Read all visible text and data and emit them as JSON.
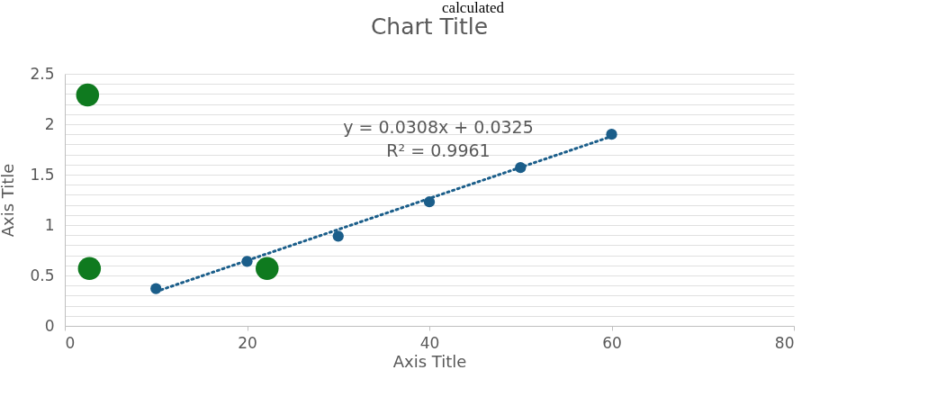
{
  "chart_data": {
    "type": "scatter",
    "title": "Chart Title",
    "xlabel": "Axis Title",
    "ylabel": "Axis Title",
    "annotations": [
      "calculated",
      "y = 0.0308x + 0.0325",
      "R² = 0.9961"
    ],
    "series": [
      {
        "color": "#1b5e8a",
        "x": [
          10,
          20,
          30,
          40,
          50,
          60
        ],
        "values": [
          0.37,
          0.64,
          0.89,
          1.23,
          1.57,
          1.9
        ]
      },
      {
        "color": "#0f7a1f",
        "x": [
          2.5,
          2.7,
          22.2
        ],
        "values": [
          2.29,
          0.57,
          0.57
        ]
      },
      {
        "type": "line",
        "color": "#1b5e8a",
        "marker": "none",
        "x": [
          10,
          60
        ],
        "values": [
          0.34,
          1.88
        ]
      }
    ],
    "marker": "circle",
    "line_style": "dotted",
    "xlim": [
      0,
      80
    ],
    "xticks": [
      0,
      20,
      40,
      60,
      80
    ],
    "ylim": [
      0,
      2.5
    ],
    "yticks": [
      0,
      {
        "value": 0.1,
        "label": null
      },
      {
        "value": 0.2,
        "label": null
      },
      {
        "value": 0.3,
        "label": null
      },
      {
        "value": 0.4,
        "label": null
      },
      0.5,
      {
        "value": 0.6,
        "label": null
      },
      {
        "value": 0.7,
        "label": null
      },
      {
        "value": 0.8,
        "label": null
      },
      {
        "value": 0.9,
        "label": null
      },
      1,
      {
        "value": 1.1,
        "label": null
      },
      {
        "value": 1.2,
        "label": null
      },
      {
        "value": 1.3,
        "label": null
      },
      {
        "value": 1.4,
        "label": null
      },
      1.5,
      {
        "value": 1.6,
        "label": null
      },
      {
        "value": 1.7,
        "label": null
      },
      {
        "value": 1.8,
        "label": null
      },
      {
        "value": 1.9,
        "label": null
      },
      2,
      {
        "value": 2.1,
        "label": null
      },
      {
        "value": 2.2,
        "label": null
      },
      {
        "value": 2.3,
        "label": null
      },
      {
        "value": 2.4,
        "label": null
      },
      2.5
    ],
    "grid": "y"
  }
}
